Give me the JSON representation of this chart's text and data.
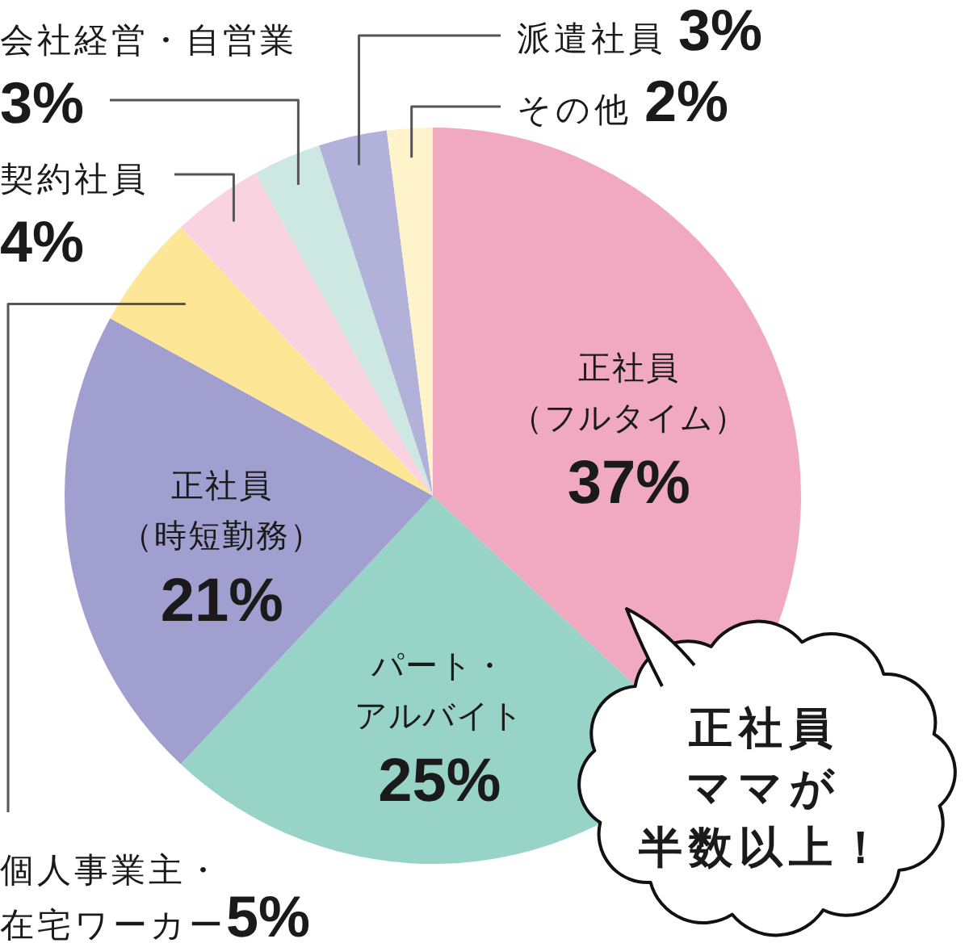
{
  "chart_data": {
    "type": "pie",
    "categories": [
      "正社員（フルタイム）",
      "パート・アルバイト",
      "正社員（時短勤務）",
      "個人事業主・在宅ワーカー",
      "契約社員",
      "会社経営・自営業",
      "派遣社員",
      "その他"
    ],
    "values": [
      37,
      25,
      21,
      5,
      4,
      3,
      3,
      2
    ],
    "colors": [
      "#f1a9c2",
      "#98d3c8",
      "#a09fcf",
      "#fde796",
      "#fad3e0",
      "#cde8e2",
      "#b1b1d9",
      "#fef3cb"
    ],
    "value_labels": [
      "37%",
      "25%",
      "21%",
      "5%",
      "4%",
      "3%",
      "3%",
      "2%"
    ],
    "annotations": [
      "正社員ママが半数以上！"
    ]
  }
}
